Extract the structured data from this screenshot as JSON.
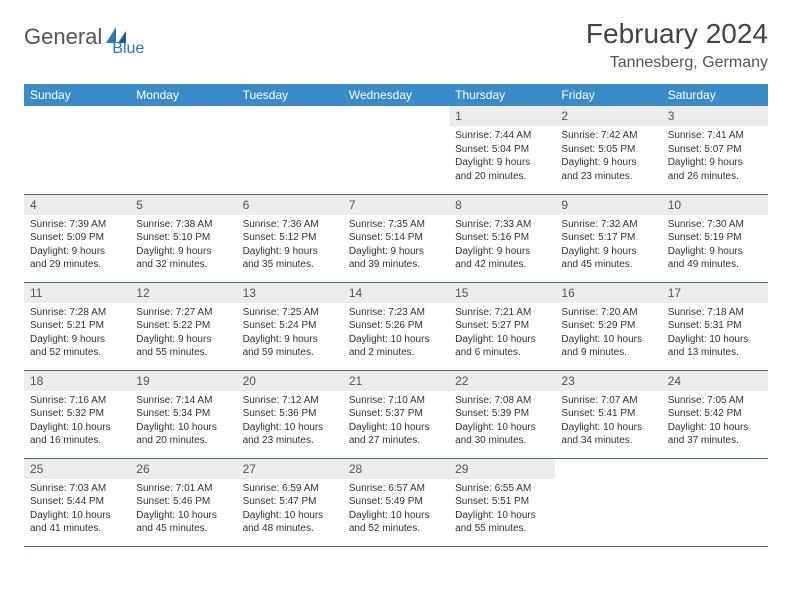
{
  "logo": {
    "text1": "General",
    "text2": "Blue"
  },
  "title": "February 2024",
  "location": "Tannesberg, Germany",
  "colors": {
    "header_bg": "#3b8bc9",
    "header_text": "#ffffff",
    "daynum_bg": "#ececec",
    "border": "#4a6a8a",
    "logo_blue": "#2a77bb",
    "logo_gray": "#555555"
  },
  "weekdays": [
    "Sunday",
    "Monday",
    "Tuesday",
    "Wednesday",
    "Thursday",
    "Friday",
    "Saturday"
  ],
  "weeks": [
    [
      null,
      null,
      null,
      null,
      {
        "n": "1",
        "sr": "7:44 AM",
        "ss": "5:04 PM",
        "dl": "9 hours and 20 minutes."
      },
      {
        "n": "2",
        "sr": "7:42 AM",
        "ss": "5:05 PM",
        "dl": "9 hours and 23 minutes."
      },
      {
        "n": "3",
        "sr": "7:41 AM",
        "ss": "5:07 PM",
        "dl": "9 hours and 26 minutes."
      }
    ],
    [
      {
        "n": "4",
        "sr": "7:39 AM",
        "ss": "5:09 PM",
        "dl": "9 hours and 29 minutes."
      },
      {
        "n": "5",
        "sr": "7:38 AM",
        "ss": "5:10 PM",
        "dl": "9 hours and 32 minutes."
      },
      {
        "n": "6",
        "sr": "7:36 AM",
        "ss": "5:12 PM",
        "dl": "9 hours and 35 minutes."
      },
      {
        "n": "7",
        "sr": "7:35 AM",
        "ss": "5:14 PM",
        "dl": "9 hours and 39 minutes."
      },
      {
        "n": "8",
        "sr": "7:33 AM",
        "ss": "5:16 PM",
        "dl": "9 hours and 42 minutes."
      },
      {
        "n": "9",
        "sr": "7:32 AM",
        "ss": "5:17 PM",
        "dl": "9 hours and 45 minutes."
      },
      {
        "n": "10",
        "sr": "7:30 AM",
        "ss": "5:19 PM",
        "dl": "9 hours and 49 minutes."
      }
    ],
    [
      {
        "n": "11",
        "sr": "7:28 AM",
        "ss": "5:21 PM",
        "dl": "9 hours and 52 minutes."
      },
      {
        "n": "12",
        "sr": "7:27 AM",
        "ss": "5:22 PM",
        "dl": "9 hours and 55 minutes."
      },
      {
        "n": "13",
        "sr": "7:25 AM",
        "ss": "5:24 PM",
        "dl": "9 hours and 59 minutes."
      },
      {
        "n": "14",
        "sr": "7:23 AM",
        "ss": "5:26 PM",
        "dl": "10 hours and 2 minutes."
      },
      {
        "n": "15",
        "sr": "7:21 AM",
        "ss": "5:27 PM",
        "dl": "10 hours and 6 minutes."
      },
      {
        "n": "16",
        "sr": "7:20 AM",
        "ss": "5:29 PM",
        "dl": "10 hours and 9 minutes."
      },
      {
        "n": "17",
        "sr": "7:18 AM",
        "ss": "5:31 PM",
        "dl": "10 hours and 13 minutes."
      }
    ],
    [
      {
        "n": "18",
        "sr": "7:16 AM",
        "ss": "5:32 PM",
        "dl": "10 hours and 16 minutes."
      },
      {
        "n": "19",
        "sr": "7:14 AM",
        "ss": "5:34 PM",
        "dl": "10 hours and 20 minutes."
      },
      {
        "n": "20",
        "sr": "7:12 AM",
        "ss": "5:36 PM",
        "dl": "10 hours and 23 minutes."
      },
      {
        "n": "21",
        "sr": "7:10 AM",
        "ss": "5:37 PM",
        "dl": "10 hours and 27 minutes."
      },
      {
        "n": "22",
        "sr": "7:08 AM",
        "ss": "5:39 PM",
        "dl": "10 hours and 30 minutes."
      },
      {
        "n": "23",
        "sr": "7:07 AM",
        "ss": "5:41 PM",
        "dl": "10 hours and 34 minutes."
      },
      {
        "n": "24",
        "sr": "7:05 AM",
        "ss": "5:42 PM",
        "dl": "10 hours and 37 minutes."
      }
    ],
    [
      {
        "n": "25",
        "sr": "7:03 AM",
        "ss": "5:44 PM",
        "dl": "10 hours and 41 minutes."
      },
      {
        "n": "26",
        "sr": "7:01 AM",
        "ss": "5:46 PM",
        "dl": "10 hours and 45 minutes."
      },
      {
        "n": "27",
        "sr": "6:59 AM",
        "ss": "5:47 PM",
        "dl": "10 hours and 48 minutes."
      },
      {
        "n": "28",
        "sr": "6:57 AM",
        "ss": "5:49 PM",
        "dl": "10 hours and 52 minutes."
      },
      {
        "n": "29",
        "sr": "6:55 AM",
        "ss": "5:51 PM",
        "dl": "10 hours and 55 minutes."
      },
      null,
      null
    ]
  ],
  "labels": {
    "sunrise": "Sunrise: ",
    "sunset": "Sunset: ",
    "daylight": "Daylight: "
  }
}
